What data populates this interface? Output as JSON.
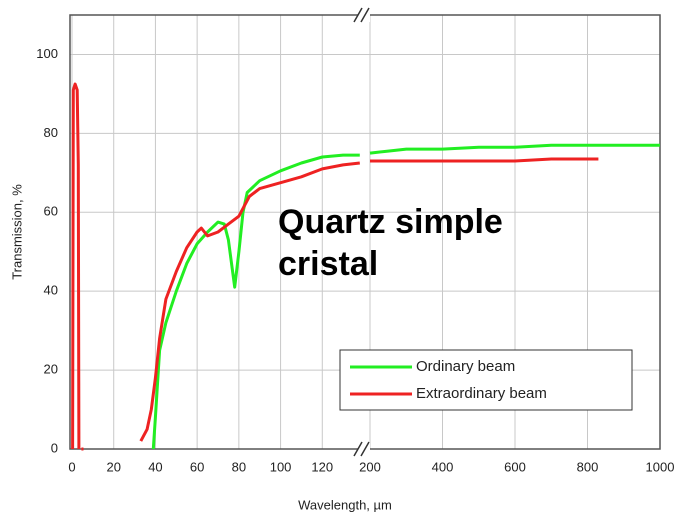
{
  "chart_data": {
    "type": "line",
    "annotation": [
      "Quartz simple",
      "cristal"
    ],
    "xlabel": "Wavelength, µm",
    "ylabel": "Transmission, %",
    "ylim": [
      0,
      110
    ],
    "yticks": [
      0,
      20,
      40,
      60,
      80,
      100
    ],
    "x_segments": [
      {
        "xlim": [
          0,
          140
        ],
        "xticks": [
          0,
          20,
          40,
          60,
          80,
          100,
          120
        ]
      },
      {
        "xlim": [
          200,
          1000
        ],
        "xticks": [
          200,
          400,
          600,
          800,
          1000
        ]
      }
    ],
    "grid": true,
    "legend": "lower right",
    "series": [
      {
        "name": "Ordinary beam",
        "color": "#22ee22",
        "x": [
          39,
          40,
          42,
          45,
          50,
          55,
          60,
          65,
          70,
          73,
          75,
          77,
          78,
          80,
          82,
          84,
          90,
          100,
          110,
          120,
          130,
          138,
          null,
          200,
          250,
          300,
          400,
          500,
          600,
          700,
          800,
          1000
        ],
        "values": [
          0,
          8,
          25,
          32,
          40,
          47,
          52,
          55,
          57.5,
          57,
          53,
          45,
          41,
          50,
          60,
          65,
          68,
          70.5,
          72.5,
          74,
          74.5,
          74.5,
          null,
          75,
          75.5,
          76,
          76,
          76.5,
          76.5,
          77,
          77,
          77
        ]
      },
      {
        "name": "Extraordinary beam",
        "color": "#ee2222",
        "x": [
          0.3,
          0.6,
          1.5,
          2.5,
          3,
          3.3,
          null,
          4.5,
          5.5,
          null,
          33,
          36,
          38,
          40,
          42,
          45,
          50,
          55,
          60,
          62,
          65,
          70,
          75,
          80,
          85,
          90,
          100,
          110,
          120,
          130,
          138,
          null,
          200,
          400,
          600,
          700,
          830
        ],
        "values": [
          0,
          91,
          92.5,
          91,
          72,
          0,
          null,
          0,
          0,
          null,
          2,
          5,
          10,
          18,
          28,
          38,
          45,
          51,
          55,
          56,
          54,
          55,
          57,
          59,
          64,
          66,
          67.5,
          69,
          71,
          72,
          72.5,
          null,
          73,
          73,
          73,
          73.5,
          73.5
        ]
      }
    ]
  }
}
